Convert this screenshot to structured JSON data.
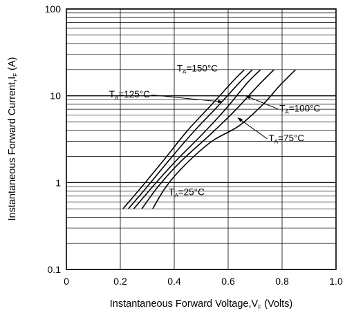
{
  "chart_data": {
    "type": "line",
    "xlabel": "Instantaneous Forward Voltage,V",
    "xlabel_sub": "F",
    "xlabel_suffix": " (Volts)",
    "ylabel": "Instantaneous Forward Current,I",
    "ylabel_sub": "F",
    "ylabel_suffix": " (A)",
    "xlim": [
      0,
      1.0
    ],
    "ylim": [
      0.1,
      100
    ],
    "y_scale": "log",
    "grid": true,
    "x_ticks": [
      {
        "value": 0,
        "label": "0"
      },
      {
        "value": 0.2,
        "label": "0.2"
      },
      {
        "value": 0.4,
        "label": "0.4"
      },
      {
        "value": 0.6,
        "label": "0.6"
      },
      {
        "value": 0.8,
        "label": "0.8"
      },
      {
        "value": 1.0,
        "label": "1.0"
      }
    ],
    "y_ticks": [
      {
        "value": 0.1,
        "label": "0.1"
      },
      {
        "value": 1,
        "label": "1"
      },
      {
        "value": 10,
        "label": "10"
      },
      {
        "value": 100,
        "label": "100"
      }
    ],
    "series": [
      {
        "name": "T_A=150°C",
        "label_main": "T",
        "label_sub": "A",
        "label_rest": "=150°C",
        "x": [
          0.21,
          0.28,
          0.36,
          0.45,
          0.54,
          0.62,
          0.66
        ],
        "y": [
          0.5,
          0.9,
          1.8,
          4.0,
          8.0,
          15.0,
          20.0
        ]
      },
      {
        "name": "T_A=125°C",
        "label_main": "T",
        "label_sub": "A",
        "label_rest": "=125°C",
        "x": [
          0.23,
          0.3,
          0.38,
          0.47,
          0.56,
          0.64,
          0.69
        ],
        "y": [
          0.5,
          0.9,
          1.8,
          3.8,
          7.5,
          14.0,
          20.0
        ]
      },
      {
        "name": "T_A=100°C",
        "label_main": "T",
        "label_sub": "A",
        "label_rest": "=100°C",
        "x": [
          0.25,
          0.32,
          0.4,
          0.5,
          0.59,
          0.67,
          0.72
        ],
        "y": [
          0.5,
          0.9,
          1.7,
          3.5,
          7.0,
          14.0,
          20.0
        ]
      },
      {
        "name": "T_A=75°C",
        "label_main": "T",
        "label_sub": "A",
        "label_rest": "=75°C",
        "x": [
          0.28,
          0.34,
          0.42,
          0.53,
          0.62,
          0.71,
          0.77
        ],
        "y": [
          0.5,
          0.9,
          1.7,
          3.5,
          6.5,
          13.0,
          20.0
        ]
      },
      {
        "name": "T_A=25°C",
        "label_main": "T",
        "label_sub": "A",
        "label_rest": "=25°C",
        "x": [
          0.32,
          0.37,
          0.44,
          0.54,
          0.64,
          0.73,
          0.79,
          0.85
        ],
        "y": [
          0.5,
          0.9,
          1.6,
          3.0,
          4.5,
          8.0,
          13.0,
          20.0
        ]
      }
    ],
    "annotations": [
      {
        "series": "T_A=150°C",
        "text_x": 0.41,
        "text_y": 19.0,
        "anchor": "start",
        "arrow": false
      },
      {
        "series": "T_A=125°C",
        "text_x": 0.31,
        "text_y": 9.6,
        "anchor": "end",
        "arrow_to": [
          0.58,
          8.5
        ]
      },
      {
        "series": "T_A=100°C",
        "text_x": 0.79,
        "text_y": 6.6,
        "anchor": "start",
        "arrow_to": [
          0.665,
          10.0
        ]
      },
      {
        "series": "T_A=75°C",
        "text_x": 0.75,
        "text_y": 3.0,
        "anchor": "start",
        "arrow_to": [
          0.635,
          5.6
        ]
      },
      {
        "series": "T_A=25°C",
        "text_x": 0.38,
        "text_y": 0.72,
        "anchor": "start",
        "arrow": false
      }
    ]
  }
}
